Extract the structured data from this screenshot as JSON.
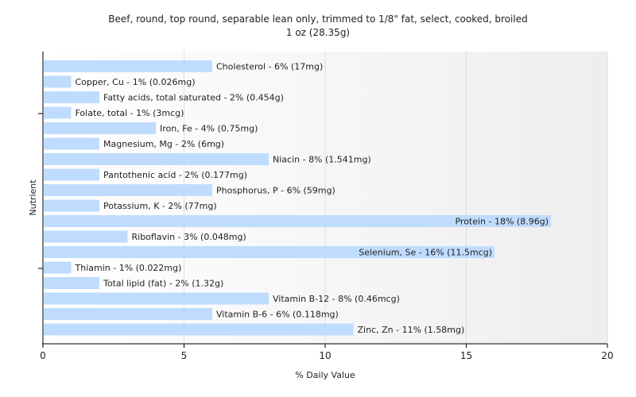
{
  "chart_data": {
    "type": "bar",
    "orientation": "horizontal",
    "title": "Beef, round, top round, separable lean only, trimmed to 1/8\" fat, select, cooked, broiled",
    "subtitle": "1 oz (28.35g)",
    "xlabel": "% Daily Value",
    "ylabel": "Nutrient",
    "xlim": [
      0,
      20
    ],
    "xticks": [
      0,
      5,
      10,
      15,
      20
    ],
    "grid": true,
    "bar_color": "#bfdcff",
    "categories": [
      "Cholesterol",
      "Copper, Cu",
      "Fatty acids, total saturated",
      "Folate, total",
      "Iron, Fe",
      "Magnesium, Mg",
      "Niacin",
      "Pantothenic acid",
      "Phosphorus, P",
      "Potassium, K",
      "Protein",
      "Riboflavin",
      "Selenium, Se",
      "Thiamin",
      "Total lipid (fat)",
      "Vitamin B-12",
      "Vitamin B-6",
      "Zinc, Zn"
    ],
    "values": [
      6,
      1,
      2,
      1,
      4,
      2,
      8,
      2,
      6,
      2,
      18,
      3,
      16,
      1,
      2,
      8,
      6,
      11
    ],
    "labels": [
      "Cholesterol - 6% (17mg)",
      "Copper, Cu - 1% (0.026mg)",
      "Fatty acids, total saturated - 2% (0.454g)",
      "Folate, total - 1% (3mcg)",
      "Iron, Fe - 4% (0.75mg)",
      "Magnesium, Mg - 2% (6mg)",
      "Niacin - 8% (1.541mg)",
      "Pantothenic acid - 2% (0.177mg)",
      "Phosphorus, P - 6% (59mg)",
      "Potassium, K - 2% (77mg)",
      "Protein - 18% (8.96g)",
      "Riboflavin - 3% (0.048mg)",
      "Selenium, Se - 16% (11.5mcg)",
      "Thiamin - 1% (0.022mg)",
      "Total lipid (fat) - 2% (1.32g)",
      "Vitamin B-12 - 8% (0.46mcg)",
      "Vitamin B-6 - 6% (0.118mg)",
      "Zinc, Zn - 11% (1.58mg)"
    ]
  }
}
